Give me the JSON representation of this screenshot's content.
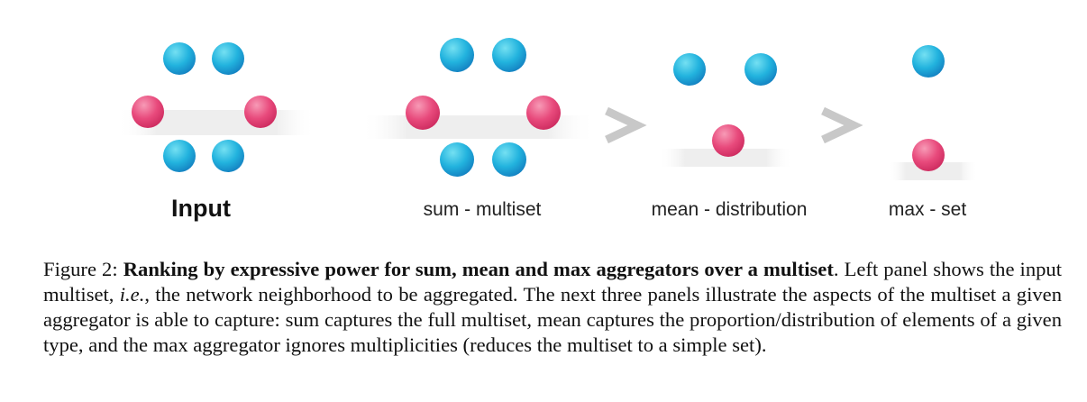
{
  "panels": {
    "input_label": "Input",
    "sum_label": "sum - multiset",
    "mean_label": "mean - distribution",
    "max_label": "max - set"
  },
  "comparators": [
    ">",
    ">"
  ],
  "colors": {
    "blue_node": "#1aa6d8",
    "pink_node": "#e23c72",
    "comparator": "#c8c8c8"
  },
  "caption": {
    "figure_label": "Figure 2:",
    "title": "Ranking by expressive power for sum, mean and max aggregators over a multiset",
    "title_end": ".",
    "text_1": "Left panel shows the input multiset, ",
    "ie": "i.e.",
    "text_2": ", the network neighborhood to be aggregated. The next three panels illustrate the aspects of the multiset a given aggregator is able to capture: sum captures the full multiset, mean captures the proportion/distribution of elements of a given type, and the max aggregator ignores multiplicities (reduces the multiset to a simple set)."
  }
}
